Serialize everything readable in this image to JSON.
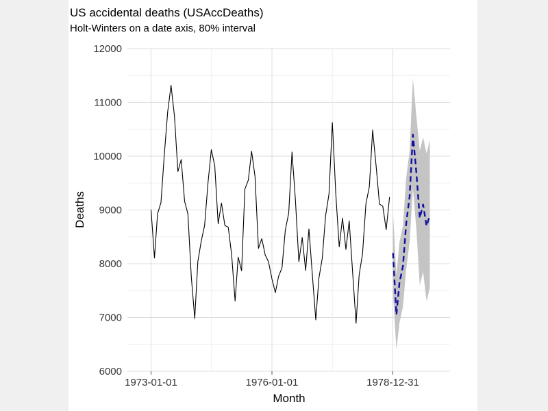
{
  "chart_data": {
    "type": "line",
    "title": "US accidental deaths (USAccDeaths)",
    "subtitle": "Holt-Winters on a date axis, 80% interval",
    "xlabel": "Month",
    "ylabel": "Deaths",
    "ylim": [
      6000,
      12000
    ],
    "yticks": [
      6000,
      7000,
      8000,
      9000,
      10000,
      11000,
      12000
    ],
    "xlim": [
      "1972-06-01",
      "1980-06-01"
    ],
    "xticks": [
      "1973-01-01",
      "1976-01-01",
      "1978-12-31"
    ],
    "grid": true,
    "series": [
      {
        "role": "observed",
        "color": "#000000",
        "x_start": "1973-01",
        "values": [
          9007,
          8106,
          8928,
          9137,
          10017,
          10826,
          11317,
          10744,
          9713,
          9938,
          9161,
          8927,
          7750,
          6981,
          8038,
          8422,
          8714,
          9512,
          10120,
          9823,
          8743,
          9129,
          8710,
          8680,
          8162,
          7306,
          8124,
          7870,
          9387,
          9556,
          10093,
          9620,
          8285,
          8466,
          8160,
          8034,
          7717,
          7461,
          7767,
          7925,
          8623,
          8945,
          10078,
          9179,
          8037,
          8488,
          7874,
          8647,
          7792,
          6957,
          7726,
          8106,
          8890,
          9299,
          10625,
          9302,
          8314,
          8850,
          8265,
          8796,
          7836,
          6892,
          7791,
          8192,
          9115,
          9434,
          10484,
          9827,
          9110,
          9070,
          8633,
          9240
        ]
      },
      {
        "role": "forecast",
        "color": "#1010a0",
        "x_start": "1979-01",
        "values": [
          8200,
          7050,
          7650,
          7950,
          8750,
          9250,
          10400,
          9700,
          8850,
          9100,
          8700,
          8900
        ],
        "lower": [
          7450,
          6400,
          6900,
          7200,
          7900,
          8400,
          9400,
          8650,
          7600,
          7850,
          7300,
          7550
        ],
        "upper": [
          8950,
          7800,
          8400,
          8700,
          9600,
          10100,
          11450,
          10750,
          10100,
          10350,
          10050,
          10300
        ]
      }
    ]
  }
}
